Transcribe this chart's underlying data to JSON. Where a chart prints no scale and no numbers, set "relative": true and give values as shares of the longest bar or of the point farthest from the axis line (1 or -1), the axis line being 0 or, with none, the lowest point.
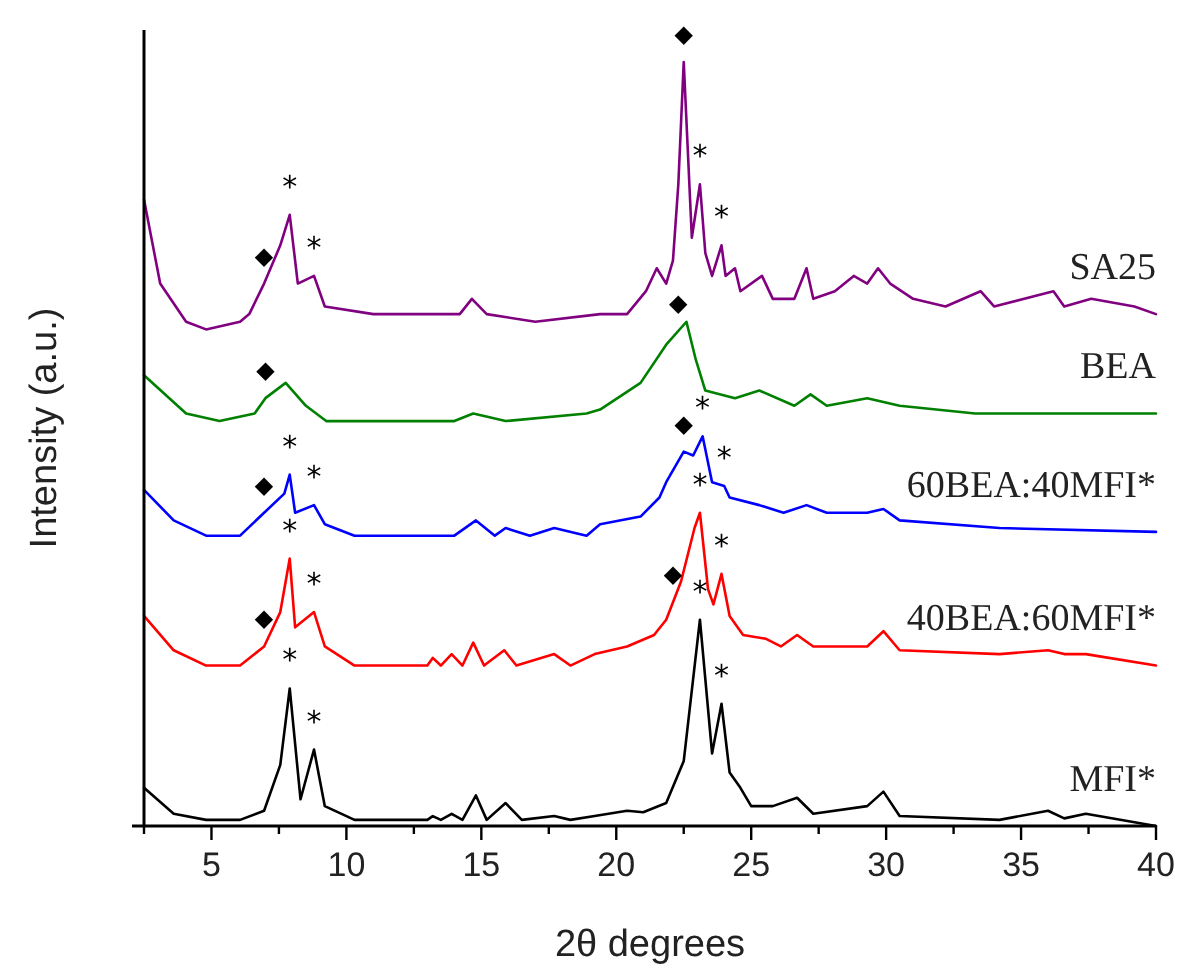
{
  "chart_data": {
    "type": "line",
    "relative": true,
    "xlabel": "2θ degrees",
    "ylabel": "Intensity (a.u.)",
    "xlim": [
      2.5,
      40
    ],
    "xticks": [
      {
        "value": 2.5,
        "label": null
      },
      5,
      {
        "value": 7.5,
        "label": null
      },
      10,
      {
        "value": 12.5,
        "label": null
      },
      15,
      {
        "value": 17.5,
        "label": null
      },
      20,
      {
        "value": 22.5,
        "label": null
      },
      25,
      {
        "value": 27.5,
        "label": null
      },
      30,
      {
        "value": 32.5,
        "label": null
      },
      35,
      {
        "value": 37.5,
        "label": null
      },
      40
    ],
    "grid": false,
    "legend": false,
    "marker": "none",
    "line_style": "solid",
    "series": [
      {
        "name": "SA25",
        "color": "#800080",
        "x": [
          2.5,
          3.1,
          4.06,
          4.8,
          6.06,
          6.4,
          6.95,
          7.55,
          7.9,
          8.2,
          8.8,
          9.2,
          11,
          14.2,
          14.65,
          15.2,
          17,
          19.4,
          20.4,
          21.1,
          21.5,
          21.85,
          22.1,
          22.3,
          22.5,
          22.8,
          23.1,
          23.3,
          23.55,
          23.9,
          24.05,
          24.4,
          24.6,
          25.4,
          25.8,
          26.6,
          27.05,
          27.3,
          28.1,
          28.8,
          29.3,
          29.7,
          30.15,
          31,
          32.2,
          33.5,
          34,
          36.2,
          36.6,
          37.6,
          39.2,
          40
        ],
        "values": [
          0.82,
          0.71,
          0.66,
          0.65,
          0.66,
          0.67,
          0.71,
          0.76,
          0.8,
          0.71,
          0.72,
          0.68,
          0.67,
          0.67,
          0.69,
          0.67,
          0.66,
          0.67,
          0.67,
          0.7,
          0.73,
          0.71,
          0.74,
          0.84,
          1,
          0.77,
          0.84,
          0.75,
          0.72,
          0.76,
          0.72,
          0.73,
          0.7,
          0.72,
          0.69,
          0.69,
          0.73,
          0.69,
          0.7,
          0.72,
          0.71,
          0.73,
          0.71,
          0.69,
          0.68,
          0.7,
          0.68,
          0.7,
          0.68,
          0.69,
          0.68,
          0.67
        ]
      },
      {
        "name": "BEA",
        "color": "#008000",
        "x": [
          2.5,
          4.06,
          5.3,
          6.6,
          7,
          7.75,
          8.5,
          9.25,
          14,
          14.7,
          15.9,
          18.9,
          19.4,
          20.9,
          21.85,
          22.6,
          22.95,
          23.3,
          24.4,
          25.3,
          26.6,
          27.2,
          27.8,
          29.3,
          30.5,
          33.3,
          40
        ],
        "values": [
          0.59,
          0.54,
          0.53,
          0.54,
          0.56,
          0.58,
          0.55,
          0.53,
          0.53,
          0.54,
          0.53,
          0.54,
          0.545,
          0.58,
          0.63,
          0.66,
          0.61,
          0.57,
          0.56,
          0.57,
          0.55,
          0.565,
          0.55,
          0.56,
          0.55,
          0.54,
          0.54
        ]
      },
      {
        "name": "60BEA:40MFI*",
        "color": "#0000ff",
        "x": [
          2.5,
          3.6,
          4.8,
          6.06,
          6.95,
          7.7,
          7.9,
          8.1,
          8.8,
          9.2,
          10.3,
          14,
          14.8,
          15.5,
          15.9,
          16.8,
          17.7,
          18.9,
          19.4,
          20.9,
          21.6,
          21.85,
          22.5,
          22.85,
          23.2,
          23.55,
          24,
          24.2,
          25.3,
          26.2,
          27.05,
          27.8,
          29.3,
          29.9,
          30.5,
          34.2,
          40
        ],
        "values": [
          0.44,
          0.4,
          0.38,
          0.38,
          0.41,
          0.435,
          0.46,
          0.41,
          0.42,
          0.395,
          0.38,
          0.38,
          0.4,
          0.38,
          0.39,
          0.38,
          0.39,
          0.38,
          0.395,
          0.405,
          0.43,
          0.45,
          0.49,
          0.485,
          0.51,
          0.45,
          0.445,
          0.43,
          0.42,
          0.41,
          0.42,
          0.41,
          0.41,
          0.415,
          0.4,
          0.39,
          0.385
        ]
      },
      {
        "name": "40BEA:60MFI*",
        "color": "#ff0000",
        "x": [
          2.5,
          3.6,
          4.8,
          6.06,
          6.95,
          7.55,
          7.9,
          8.1,
          8.8,
          9.2,
          10.3,
          13,
          13.2,
          13.5,
          13.9,
          14.3,
          14.7,
          15.1,
          15.85,
          16.3,
          17.7,
          18.3,
          19.2,
          20.4,
          21.4,
          21.85,
          22.4,
          22.9,
          23.1,
          23.4,
          23.6,
          23.9,
          24.2,
          24.7,
          25.55,
          26.1,
          26.7,
          27.3,
          29.3,
          29.9,
          30.5,
          34.2,
          36,
          36.6,
          37.4,
          40
        ],
        "values": [
          0.275,
          0.23,
          0.21,
          0.21,
          0.235,
          0.28,
          0.35,
          0.26,
          0.28,
          0.235,
          0.21,
          0.21,
          0.22,
          0.21,
          0.225,
          0.21,
          0.24,
          0.21,
          0.23,
          0.21,
          0.225,
          0.21,
          0.225,
          0.235,
          0.25,
          0.27,
          0.32,
          0.39,
          0.41,
          0.31,
          0.29,
          0.33,
          0.275,
          0.25,
          0.245,
          0.235,
          0.25,
          0.235,
          0.235,
          0.255,
          0.23,
          0.225,
          0.23,
          0.225,
          0.225,
          0.21
        ]
      },
      {
        "name": "MFI*",
        "color": "#000000",
        "x": [
          2.5,
          3.6,
          4.8,
          6.06,
          6.95,
          7.55,
          7.9,
          8.3,
          8.8,
          9.2,
          10.3,
          13,
          13.2,
          13.5,
          13.9,
          14.3,
          14.8,
          15.2,
          15.9,
          16.5,
          17.7,
          18.3,
          19.2,
          20.4,
          21,
          21.85,
          22.5,
          23.1,
          23.55,
          23.9,
          24.2,
          24.6,
          25,
          25.8,
          26.7,
          27.3,
          29.3,
          29.9,
          30.5,
          34.2,
          36,
          36.6,
          37.4,
          40
        ],
        "values": [
          0.05,
          0.016,
          0.008,
          0.008,
          0.02,
          0.08,
          0.18,
          0.035,
          0.1,
          0.026,
          0.008,
          0.008,
          0.013,
          0.008,
          0.016,
          0.008,
          0.04,
          0.008,
          0.03,
          0.008,
          0.013,
          0.008,
          0.013,
          0.02,
          0.018,
          0.03,
          0.085,
          0.27,
          0.095,
          0.16,
          0.07,
          0.05,
          0.026,
          0.026,
          0.037,
          0.016,
          0.026,
          0.045,
          0.013,
          0.008,
          0.02,
          0.01,
          0.016,
          0
        ]
      }
    ],
    "annotations": [
      {
        "text": "◆",
        "x": 6.95,
        "y": 0.71
      },
      {
        "text": "*",
        "x": 7.9,
        "y": 0.8
      },
      {
        "text": "*",
        "x": 8.8,
        "y": 0.72
      },
      {
        "text": "◆",
        "x": 22.5,
        "y": 1
      },
      {
        "text": "*",
        "x": 23.1,
        "y": 0.84
      },
      {
        "text": "*",
        "x": 23.9,
        "y": 0.76
      },
      {
        "text": "◆",
        "x": 7,
        "y": 0.56
      },
      {
        "text": "◆",
        "x": 22.3,
        "y": 0.648
      },
      {
        "text": "◆",
        "x": 6.95,
        "y": 0.41
      },
      {
        "text": "*",
        "x": 7.9,
        "y": 0.46
      },
      {
        "text": "*",
        "x": 8.8,
        "y": 0.42
      },
      {
        "text": "◆",
        "x": 22.5,
        "y": 0.49
      },
      {
        "text": "*",
        "x": 23.2,
        "y": 0.51
      },
      {
        "text": "*",
        "x": 24,
        "y": 0.445
      },
      {
        "text": "◆",
        "x": 6.95,
        "y": 0.235
      },
      {
        "text": "*",
        "x": 7.9,
        "y": 0.35
      },
      {
        "text": "*",
        "x": 8.8,
        "y": 0.28
      },
      {
        "text": "◆",
        "x": 22.1,
        "y": 0.293
      },
      {
        "text": "*",
        "x": 23.1,
        "y": 0.41
      },
      {
        "text": "*",
        "x": 23.9,
        "y": 0.33
      },
      {
        "text": "*",
        "x": 7.9,
        "y": 0.18
      },
      {
        "text": "*",
        "x": 8.8,
        "y": 0.1
      },
      {
        "text": "*",
        "x": 23.1,
        "y": 0.27
      },
      {
        "text": "*",
        "x": 23.9,
        "y": 0.16
      }
    ]
  }
}
